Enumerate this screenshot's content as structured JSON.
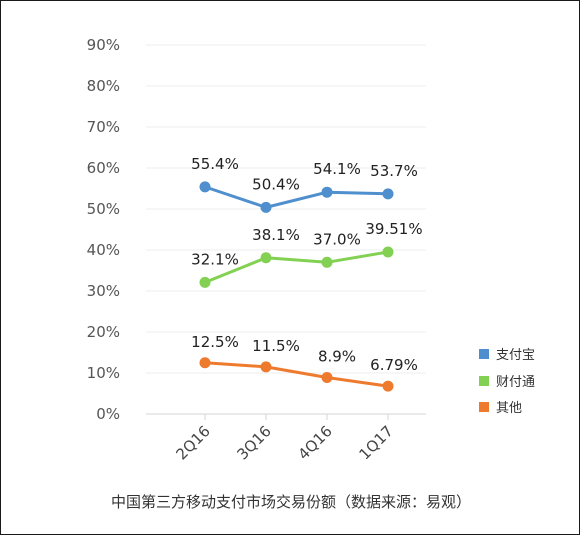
{
  "chart_data": {
    "type": "line",
    "categories": [
      "2Q16",
      "3Q16",
      "4Q16",
      "1Q17"
    ],
    "y_ticks": [
      "0%",
      "10%",
      "20%",
      "30%",
      "40%",
      "50%",
      "60%",
      "70%",
      "80%",
      "90%"
    ],
    "ylim": [
      0,
      90
    ],
    "grid": true,
    "legend_position": "right",
    "series": [
      {
        "name": "支付宝",
        "color": "#4f8fce",
        "values": [
          55.4,
          50.4,
          54.1,
          53.7
        ],
        "labels": [
          "55.4%",
          "50.4%",
          "54.1%",
          "53.7%"
        ]
      },
      {
        "name": "财付通",
        "color": "#82d152",
        "values": [
          32.1,
          38.1,
          37.0,
          39.51
        ],
        "labels": [
          "32.1%",
          "38.1%",
          "37.0%",
          "39.51%"
        ]
      },
      {
        "name": "其他",
        "color": "#ee7a2d",
        "values": [
          12.5,
          11.5,
          8.9,
          6.79
        ],
        "labels": [
          "12.5%",
          "11.5%",
          "8.9%",
          "6.79%"
        ]
      }
    ],
    "caption": "中国第三方移动支付市场交易份额（数据来源：易观）"
  }
}
